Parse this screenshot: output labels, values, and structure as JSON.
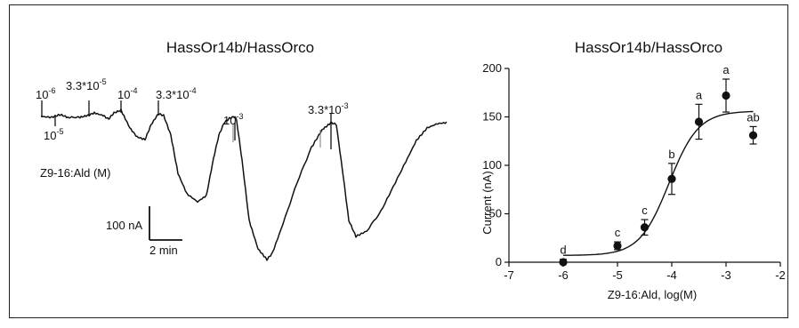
{
  "chart_data": [
    {
      "type": "line",
      "title": "HassOr14b/HassOrco",
      "stimulus_label": "Z9-16:Ald (M)",
      "scale_bar": {
        "current_label": "100 nA",
        "time_label": "2 min"
      },
      "concentrations": [
        {
          "mantissa": "",
          "exponent": "-6"
        },
        {
          "mantissa": "",
          "exponent": "-5"
        },
        {
          "mantissa": "3.3*",
          "exponent": "-5"
        },
        {
          "mantissa": "",
          "exponent": "-4"
        },
        {
          "mantissa": "3.3*",
          "exponent": "-4"
        },
        {
          "mantissa": "",
          "exponent": "-3"
        },
        {
          "mantissa": "3.3*",
          "exponent": "-3"
        }
      ]
    },
    {
      "type": "scatter",
      "title": "HassOr14b/HassOrco",
      "xlabel": "Z9-16:Ald, log(M)",
      "ylabel": "Current (nA)",
      "xlim": [
        -7,
        -2
      ],
      "ylim": [
        0,
        200
      ],
      "x_ticks": [
        -7,
        -6,
        -5,
        -4,
        -3,
        -2
      ],
      "y_ticks": [
        0,
        50,
        100,
        150,
        200
      ],
      "points": [
        {
          "x": -6,
          "y": 0,
          "err": 3,
          "letter": "d"
        },
        {
          "x": -5,
          "y": 17,
          "err": 4,
          "letter": "c"
        },
        {
          "x": -4.5,
          "y": 36,
          "err": 8,
          "letter": "c"
        },
        {
          "x": -4,
          "y": 86,
          "err": 16,
          "letter": "b"
        },
        {
          "x": -3.5,
          "y": 145,
          "err": 18,
          "letter": "a"
        },
        {
          "x": -3,
          "y": 172,
          "err": 17,
          "letter": "a"
        },
        {
          "x": -2.5,
          "y": 131,
          "err": 9,
          "letter": "ab"
        }
      ],
      "fit": {
        "bottom": 7,
        "top": 156,
        "logEC50": -4.05,
        "hill": 1.6
      }
    }
  ]
}
